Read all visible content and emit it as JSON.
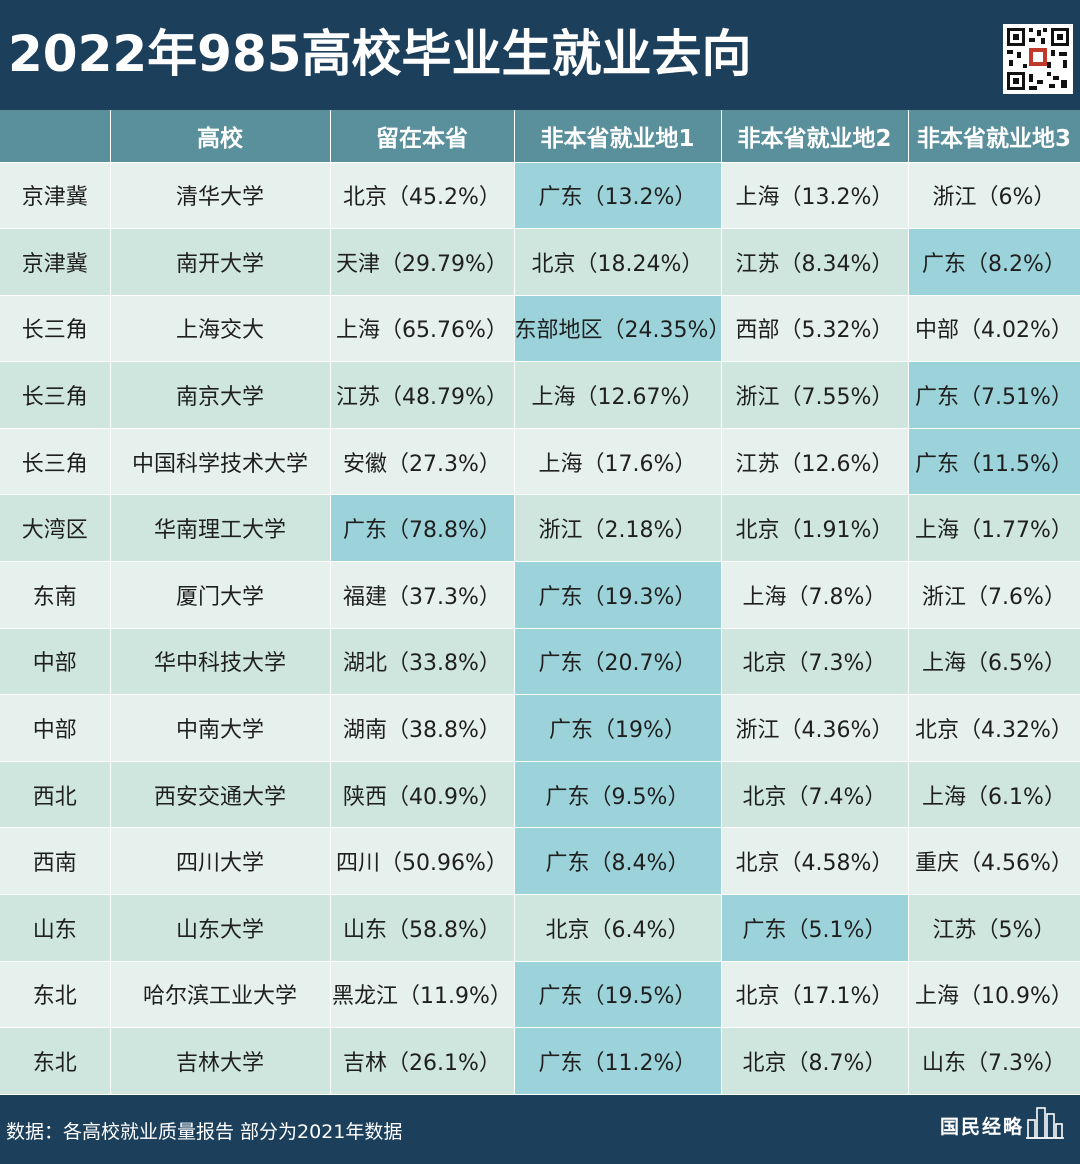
{
  "title": "2022年985高校毕业生就业去向",
  "headers": [
    "",
    "高校",
    "留在本省",
    "非本省就业地1",
    "非本省就业地2",
    "非本省就业地3"
  ],
  "rows": [
    {
      "region": "京津冀",
      "school": "清华大学",
      "home": "北京（45.2%）",
      "p1": "广东（13.2%）",
      "p2": "上海（13.2%）",
      "p3": "浙江（6%）",
      "hl": "p1"
    },
    {
      "region": "京津冀",
      "school": "南开大学",
      "home": "天津（29.79%）",
      "p1": "北京（18.24%）",
      "p2": "江苏（8.34%）",
      "p3": "广东（8.2%）",
      "hl": "p3"
    },
    {
      "region": "长三角",
      "school": "上海交大",
      "home": "上海（65.76%）",
      "p1": "东部地区（24.35%）",
      "p2": "西部（5.32%）",
      "p3": "中部（4.02%）",
      "hl": "p1"
    },
    {
      "region": "长三角",
      "school": "南京大学",
      "home": "江苏（48.79%）",
      "p1": "上海（12.67%）",
      "p2": "浙江（7.55%）",
      "p3": "广东（7.51%）",
      "hl": "p3"
    },
    {
      "region": "长三角",
      "school": "中国科学技术大学",
      "home": "安徽（27.3%）",
      "p1": "上海（17.6%）",
      "p2": "江苏（12.6%）",
      "p3": "广东（11.5%）",
      "hl": "p3"
    },
    {
      "region": "大湾区",
      "school": "华南理工大学",
      "home": "广东（78.8%）",
      "p1": "浙江（2.18%）",
      "p2": "北京（1.91%）",
      "p3": "上海（1.77%）",
      "hl": "home"
    },
    {
      "region": "东南",
      "school": "厦门大学",
      "home": "福建（37.3%）",
      "p1": "广东（19.3%）",
      "p2": "上海（7.8%）",
      "p3": "浙江（7.6%）",
      "hl": "p1"
    },
    {
      "region": "中部",
      "school": "华中科技大学",
      "home": "湖北（33.8%）",
      "p1": "广东（20.7%）",
      "p2": "北京（7.3%）",
      "p3": "上海（6.5%）",
      "hl": "p1"
    },
    {
      "region": "中部",
      "school": "中南大学",
      "home": "湖南（38.8%）",
      "p1": "广东（19%）",
      "p2": "浙江（4.36%）",
      "p3": "北京（4.32%）",
      "hl": "p1"
    },
    {
      "region": "西北",
      "school": "西安交通大学",
      "home": "陕西（40.9%）",
      "p1": "广东（9.5%）",
      "p2": "北京（7.4%）",
      "p3": "上海（6.1%）",
      "hl": "p1"
    },
    {
      "region": "西南",
      "school": "四川大学",
      "home": "四川（50.96%）",
      "p1": "广东（8.4%）",
      "p2": "北京（4.58%）",
      "p3": "重庆（4.56%）",
      "hl": "p1"
    },
    {
      "region": "山东",
      "school": "山东大学",
      "home": "山东（58.8%）",
      "p1": "北京（6.4%）",
      "p2": "广东（5.1%）",
      "p3": "江苏（5%）",
      "hl": "p2"
    },
    {
      "region": "东北",
      "school": "哈尔滨工业大学",
      "home": "黑龙江（11.9%）",
      "p1": "广东（19.5%）",
      "p2": "北京（17.1%）",
      "p3": "上海（10.9%）",
      "hl": "p1"
    },
    {
      "region": "东北",
      "school": "吉林大学",
      "home": "吉林（26.1%）",
      "p1": "广东（11.2%）",
      "p2": "北京（8.7%）",
      "p3": "山东（7.3%）",
      "hl": "p1"
    }
  ],
  "footer": {
    "source": "数据：各高校就业质量报告 部分为2021年数据",
    "brand": "国民经略"
  },
  "colors": {
    "background": "#1c3f5b",
    "header": "#5a8f9c",
    "row_light": "#e6f1ee",
    "row_dark": "#cfe6df",
    "highlight": "#9cd3da"
  },
  "icons": {
    "qr": "qr-code-icon",
    "brand_mark": "city-skyline-icon"
  }
}
